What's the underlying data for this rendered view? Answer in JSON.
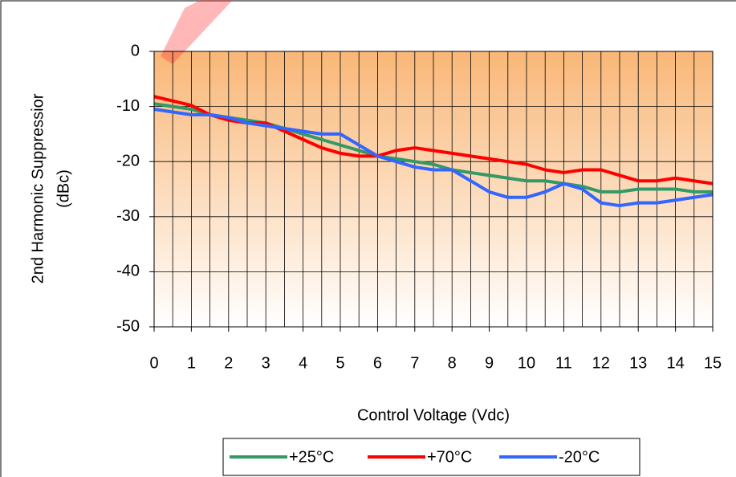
{
  "chart_data": {
    "type": "line",
    "x_label": "Control Voltage (Vdc)",
    "y_label": [
      "2nd Harmonic Suppressior",
      "(dBc)"
    ],
    "x": [
      0,
      0.5,
      1,
      1.5,
      2,
      2.5,
      3,
      3.5,
      4,
      4.5,
      5,
      5.5,
      6,
      6.5,
      7,
      7.5,
      8,
      8.5,
      9,
      9.5,
      10,
      10.5,
      11,
      11.5,
      12,
      12.5,
      13,
      13.5,
      14,
      14.5,
      15
    ],
    "series": [
      {
        "name": "+25°C",
        "color": "#339966",
        "values": [
          -9.5,
          -10,
          -10.5,
          -11.5,
          -12,
          -12.5,
          -13,
          -14,
          -15,
          -16,
          -17,
          -18,
          -19,
          -19.5,
          -20,
          -20.5,
          -21.5,
          -22,
          -22.5,
          -23,
          -23.5,
          -23.5,
          -24,
          -24.5,
          -25.5,
          -25.5,
          -25,
          -25,
          -25,
          -25.5,
          -25.5
        ]
      },
      {
        "name": "+70°C",
        "color": "#ff0000",
        "values": [
          -8.2,
          -9,
          -9.8,
          -11.5,
          -12.5,
          -13,
          -13,
          -14.5,
          -16,
          -17.5,
          -18.5,
          -19,
          -19,
          -18,
          -17.5,
          -18,
          -18.5,
          -19,
          -19.5,
          -20,
          -20.5,
          -21.5,
          -22,
          -21.5,
          -21.5,
          -22.5,
          -23.5,
          -23.5,
          -23,
          -23.5,
          -24
        ]
      },
      {
        "name": "-20°C",
        "color": "#3366ff",
        "values": [
          -10.5,
          -11,
          -11.5,
          -11.5,
          -12,
          -13,
          -13.5,
          -14,
          -14.5,
          -15,
          -15,
          -17,
          -19,
          -20,
          -21,
          -21.5,
          -21.5,
          -23.5,
          -25.5,
          -26.5,
          -26.5,
          -25.5,
          -24,
          -25,
          -27.5,
          -28,
          -27.5,
          -27.5,
          -27,
          -26.5,
          -26
        ]
      }
    ],
    "xlim": [
      0,
      15
    ],
    "xticks": [
      0,
      1,
      2,
      3,
      4,
      5,
      6,
      7,
      8,
      9,
      10,
      11,
      12,
      13,
      14,
      15
    ],
    "ylim": [
      -50,
      0
    ],
    "yticks": [
      0,
      -10,
      -20,
      -30,
      -40,
      -50
    ],
    "grid": true,
    "legend": "bottom"
  }
}
